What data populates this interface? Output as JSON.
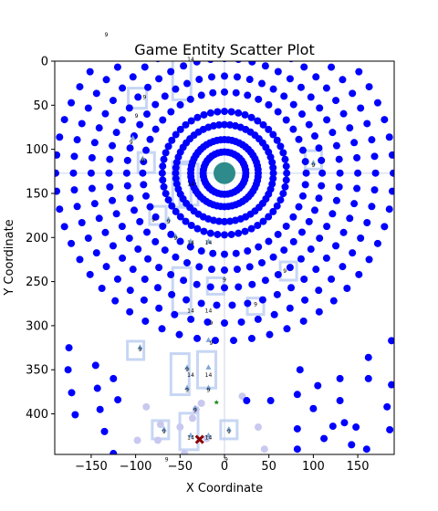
{
  "chart_data": {
    "type": "scatter",
    "title": "Game Entity Scatter Plot",
    "xlabel": "X Coordinate",
    "ylabel": "Y Coordinate",
    "xlim": [
      -191,
      191
    ],
    "ylim": [
      446,
      0
    ],
    "y_inverted": true,
    "grid": false,
    "x_ticks": [
      -150,
      -100,
      -50,
      0,
      50,
      100,
      150
    ],
    "y_ticks": [
      0,
      50,
      100,
      150,
      200,
      250,
      300,
      350,
      400
    ],
    "colors": {
      "points": "#0000ff",
      "faded_points": "#c8c8f0",
      "sprites": "#b4c8f0",
      "core": "#2e8b8b",
      "player": "#8b0000",
      "item": "#228b22"
    },
    "center": {
      "x": 0,
      "y": 127
    },
    "rings": [
      {
        "r": 24,
        "n": 40
      },
      {
        "r": 38,
        "n": 56
      },
      {
        "r": 55,
        "n": 56
      },
      {
        "r": 70,
        "n": 56
      },
      {
        "r": 92,
        "n": 44
      },
      {
        "r": 110,
        "n": 48
      },
      {
        "r": 130,
        "n": 52
      },
      {
        "r": 150,
        "n": 54
      },
      {
        "r": 170,
        "n": 56
      },
      {
        "r": 190,
        "n": 58
      }
    ],
    "lower_points": [
      {
        "x": -175,
        "y": 325
      },
      {
        "x": -176,
        "y": 350
      },
      {
        "x": -172,
        "y": 376
      },
      {
        "x": -168,
        "y": 401
      },
      {
        "x": -145,
        "y": 345
      },
      {
        "x": -143,
        "y": 371
      },
      {
        "x": -140,
        "y": 395
      },
      {
        "x": -135,
        "y": 420
      },
      {
        "x": -125,
        "y": 360
      },
      {
        "x": -120,
        "y": 384
      },
      {
        "x": -125,
        "y": 445
      },
      {
        "x": 105,
        "y": 368
      },
      {
        "x": 100,
        "y": 394
      },
      {
        "x": 85,
        "y": 350
      },
      {
        "x": 130,
        "y": 360
      },
      {
        "x": 130,
        "y": 385
      },
      {
        "x": 135,
        "y": 410
      },
      {
        "x": 143,
        "y": 435
      },
      {
        "x": 122,
        "y": 414
      },
      {
        "x": 162,
        "y": 336
      },
      {
        "x": 162,
        "y": 360
      },
      {
        "x": 188,
        "y": 317
      },
      {
        "x": 188,
        "y": 367
      },
      {
        "x": 183,
        "y": 392
      },
      {
        "x": 186,
        "y": 418
      },
      {
        "x": 148,
        "y": 415
      },
      {
        "x": 52,
        "y": 385
      },
      {
        "x": 82,
        "y": 378
      },
      {
        "x": 82,
        "y": 417
      },
      {
        "x": 82,
        "y": 440
      },
      {
        "x": 112,
        "y": 428
      },
      {
        "x": 25,
        "y": 385
      },
      {
        "x": 160,
        "y": 440
      }
    ],
    "faded_points": [
      {
        "x": -88,
        "y": 392
      },
      {
        "x": -75,
        "y": 430
      },
      {
        "x": -72,
        "y": 412
      },
      {
        "x": -63,
        "y": 455
      },
      {
        "x": -50,
        "y": 415
      },
      {
        "x": -45,
        "y": 445
      },
      {
        "x": -98,
        "y": 430
      },
      {
        "x": 45,
        "y": 440
      },
      {
        "x": 38,
        "y": 415
      },
      {
        "x": 20,
        "y": 380
      },
      {
        "x": -36,
        "y": 405
      },
      {
        "x": -20,
        "y": 428
      },
      {
        "x": -26,
        "y": 388
      },
      {
        "x": -32,
        "y": 395
      }
    ],
    "annotations": [
      {
        "text": "9",
        "x": -133,
        "y": -28
      },
      {
        "text": "14",
        "x": -38,
        "y": 0
      },
      {
        "text": "9",
        "x": -90,
        "y": 43
      },
      {
        "text": "9",
        "x": -99,
        "y": 64
      },
      {
        "text": "9",
        "x": -105,
        "y": 94
      },
      {
        "text": "9",
        "x": -92,
        "y": 115
      },
      {
        "text": "9",
        "x": -80,
        "y": 182
      },
      {
        "text": "9",
        "x": -63,
        "y": 184
      },
      {
        "text": "9",
        "x": -55,
        "y": 203
      },
      {
        "text": "14",
        "x": -38,
        "y": 208
      },
      {
        "text": "14",
        "x": -18,
        "y": 208
      },
      {
        "text": "14",
        "x": -38,
        "y": 141
      },
      {
        "text": "9",
        "x": 100,
        "y": 120
      },
      {
        "text": "9",
        "x": 68,
        "y": 240
      },
      {
        "text": "9",
        "x": 35,
        "y": 278
      },
      {
        "text": "9",
        "x": 0,
        "y": 250
      },
      {
        "text": "14",
        "x": -38,
        "y": 285
      },
      {
        "text": "14",
        "x": -18,
        "y": 285
      },
      {
        "text": "9",
        "x": -15,
        "y": 299
      },
      {
        "text": "9",
        "x": -15,
        "y": 322
      },
      {
        "text": "9",
        "x": -95,
        "y": 329
      },
      {
        "text": "9",
        "x": -42,
        "y": 352
      },
      {
        "text": "14",
        "x": -38,
        "y": 358
      },
      {
        "text": "14",
        "x": -18,
        "y": 358
      },
      {
        "text": "9",
        "x": -42,
        "y": 375
      },
      {
        "text": "9",
        "x": -18,
        "y": 375
      },
      {
        "text": "9",
        "x": -33,
        "y": 398
      },
      {
        "text": "9",
        "x": -68,
        "y": 422
      },
      {
        "text": "9",
        "x": 5,
        "y": 422
      },
      {
        "text": "14",
        "x": -38,
        "y": 429
      },
      {
        "text": "14",
        "x": -18,
        "y": 429
      },
      {
        "text": "9",
        "x": -65,
        "y": 454
      },
      {
        "text": "9",
        "x": 2,
        "y": 454
      }
    ],
    "triangles": [
      {
        "x": -103,
        "y": 87
      },
      {
        "x": -92,
        "y": 110
      },
      {
        "x": -63,
        "y": 179
      },
      {
        "x": -55,
        "y": 198
      },
      {
        "x": -38,
        "y": 204
      },
      {
        "x": -18,
        "y": 204
      },
      {
        "x": -42,
        "y": 347
      },
      {
        "x": -18,
        "y": 347
      },
      {
        "x": -42,
        "y": 370
      },
      {
        "x": -18,
        "y": 370
      },
      {
        "x": -68,
        "y": 417
      },
      {
        "x": 5,
        "y": 417
      },
      {
        "x": -38,
        "y": 424
      },
      {
        "x": -18,
        "y": 424
      },
      {
        "x": 100,
        "y": 115
      },
      {
        "x": -18,
        "y": 316
      },
      {
        "x": -95,
        "y": 324
      },
      {
        "x": -33,
        "y": 393
      }
    ],
    "sprites": [
      {
        "x": -98,
        "y": 42,
        "w": 20,
        "h": 22
      },
      {
        "x": -48,
        "y": 18,
        "w": 20,
        "h": 50
      },
      {
        "x": -40,
        "y": 140,
        "w": 20,
        "h": 45
      },
      {
        "x": -48,
        "y": 140,
        "w": 20,
        "h": 50
      },
      {
        "x": -75,
        "y": 175,
        "w": 18,
        "h": 20
      },
      {
        "x": -88,
        "y": 115,
        "w": 18,
        "h": 22
      },
      {
        "x": 100,
        "y": 112,
        "w": 18,
        "h": 20
      },
      {
        "x": -48,
        "y": 260,
        "w": 20,
        "h": 50
      },
      {
        "x": -10,
        "y": 255,
        "w": 18,
        "h": 18
      },
      {
        "x": 72,
        "y": 238,
        "w": 18,
        "h": 20
      },
      {
        "x": -100,
        "y": 328,
        "w": 18,
        "h": 20
      },
      {
        "x": -50,
        "y": 355,
        "w": 20,
        "h": 45
      },
      {
        "x": -20,
        "y": 350,
        "w": 20,
        "h": 40
      },
      {
        "x": -72,
        "y": 418,
        "w": 18,
        "h": 20
      },
      {
        "x": 5,
        "y": 418,
        "w": 18,
        "h": 20
      },
      {
        "x": -40,
        "y": 420,
        "w": 20,
        "h": 40
      },
      {
        "x": 35,
        "y": 278,
        "w": 18,
        "h": 18
      }
    ],
    "player": {
      "x": -28,
      "y": 429
    },
    "item": {
      "x": -9,
      "y": 387
    }
  }
}
